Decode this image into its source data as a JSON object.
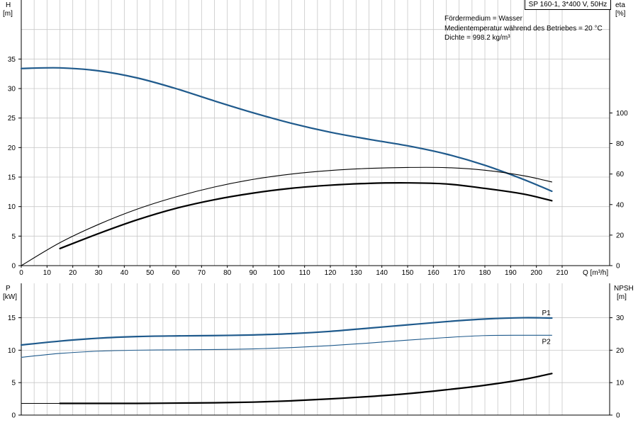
{
  "header": {
    "model": "SP 160-1, 3*400 V, 50Hz",
    "medium": "Fördermedium = Wasser",
    "temperature": "Medientemperatur während des Betriebes = 20 °C",
    "density": "Dichte = 998.2 kg/m³"
  },
  "colors": {
    "blue": "#1f5a8c",
    "black": "#000000",
    "grid": "#c8c8c8"
  },
  "chart_data": [
    {
      "type": "line",
      "x_label": "Q [m³/h]",
      "x_ticks": [
        0,
        10,
        20,
        30,
        40,
        50,
        60,
        70,
        80,
        90,
        100,
        110,
        120,
        130,
        140,
        150,
        160,
        170,
        180,
        190,
        200,
        210
      ],
      "xlim": [
        0,
        210
      ],
      "y_left_label": [
        "H",
        "[m]"
      ],
      "y_left_ticks": [
        0,
        5,
        10,
        15,
        20,
        25,
        30,
        35
      ],
      "y_left_lim": [
        0,
        45
      ],
      "y_right_label": [
        "eta",
        "[%]"
      ],
      "y_right_ticks": [
        0,
        20,
        40,
        60,
        80,
        100
      ],
      "y_right_lim": [
        0,
        174
      ],
      "grid": true,
      "series": [
        {
          "id": "head",
          "axis": "left",
          "color": "#1f5a8c",
          "width": 2.2,
          "x": [
            0,
            15,
            30,
            45,
            60,
            75,
            90,
            105,
            120,
            135,
            150,
            165,
            180,
            195,
            206
          ],
          "y": [
            33.4,
            33.5,
            33.0,
            31.8,
            30.0,
            27.9,
            25.9,
            24.1,
            22.6,
            21.4,
            20.3,
            18.9,
            17.0,
            14.6,
            12.6
          ]
        },
        {
          "id": "eta-thin",
          "axis": "right",
          "color": "#000000",
          "width": 1.1,
          "x": [
            0,
            15,
            30,
            45,
            60,
            75,
            90,
            105,
            120,
            135,
            150,
            165,
            180,
            195,
            206
          ],
          "y": [
            0,
            15,
            27,
            37,
            45,
            51.5,
            56.5,
            60,
            62.3,
            63.7,
            64.3,
            64.2,
            62.5,
            58.9,
            54.8
          ]
        },
        {
          "id": "eta-thick",
          "axis": "right",
          "color": "#000000",
          "width": 2.2,
          "x": [
            15,
            30,
            45,
            60,
            75,
            90,
            105,
            120,
            135,
            150,
            165,
            180,
            195,
            206
          ],
          "y": [
            11.2,
            21,
            30,
            37.5,
            43.2,
            47.5,
            50.7,
            52.7,
            53.9,
            54.2,
            53.5,
            50.6,
            46.9,
            42.5
          ]
        }
      ]
    },
    {
      "type": "line",
      "y_left_label": [
        "P",
        "[kW]"
      ],
      "y_left_ticks": [
        0,
        5,
        10,
        15
      ],
      "y_left_lim": [
        0,
        20.3
      ],
      "y_right_label": [
        "NPSH",
        "[m]"
      ],
      "y_right_ticks": [
        0,
        10,
        20,
        30
      ],
      "y_right_lim": [
        0,
        40.6
      ],
      "xlim": [
        0,
        210
      ],
      "grid": true,
      "series": [
        {
          "id": "P1",
          "name": "P1",
          "axis": "left",
          "color": "#1f5a8c",
          "width": 2.2,
          "x": [
            0,
            15,
            30,
            45,
            60,
            75,
            90,
            105,
            120,
            135,
            150,
            165,
            180,
            195,
            206
          ],
          "y": [
            10.8,
            11.4,
            11.85,
            12.1,
            12.2,
            12.25,
            12.35,
            12.55,
            12.9,
            13.4,
            13.9,
            14.4,
            14.8,
            15.0,
            14.95
          ]
        },
        {
          "id": "P2",
          "name": "P2",
          "axis": "left",
          "color": "#1f5a8c",
          "width": 1.1,
          "x": [
            0,
            15,
            30,
            45,
            60,
            75,
            90,
            105,
            120,
            135,
            150,
            165,
            180,
            195,
            206
          ],
          "y": [
            8.9,
            9.5,
            9.85,
            10.0,
            10.05,
            10.1,
            10.2,
            10.4,
            10.7,
            11.1,
            11.55,
            11.95,
            12.25,
            12.3,
            12.3
          ]
        },
        {
          "id": "npsh-thin",
          "axis": "right",
          "color": "#000000",
          "width": 1.1,
          "x": [
            0,
            15
          ],
          "y": [
            3.6,
            3.6
          ]
        },
        {
          "id": "npsh",
          "axis": "right",
          "color": "#000000",
          "width": 2.2,
          "x": [
            15,
            30,
            45,
            60,
            75,
            90,
            105,
            120,
            135,
            150,
            165,
            180,
            195,
            206
          ],
          "y": [
            3.6,
            3.6,
            3.6,
            3.7,
            3.8,
            4.0,
            4.4,
            5.0,
            5.7,
            6.6,
            7.8,
            9.2,
            11.0,
            12.8
          ]
        }
      ]
    }
  ]
}
